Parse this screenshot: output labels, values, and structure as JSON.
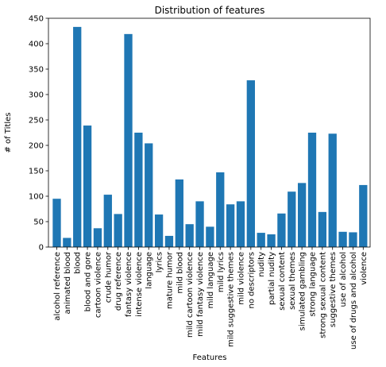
{
  "chart_data": {
    "type": "bar",
    "title": "Distribution of features",
    "xlabel": "Features",
    "ylabel": "# of Titles",
    "ylim": [
      0,
      450
    ],
    "yticks": [
      0,
      50,
      100,
      150,
      200,
      250,
      300,
      350,
      400,
      450
    ],
    "bar_color": "#1f77b4",
    "grid": false,
    "categories": [
      "alcohol reference",
      "animated blood",
      "blood",
      "blood and gore",
      "cartoon violence",
      "crude humor",
      "drug reference",
      "fantasy violence",
      "intense violence",
      "language",
      "lyrics",
      "mature humor",
      "mild blood",
      "mild cartoon violence",
      "mild fantasy violence",
      "mild language",
      "mild lyrics",
      "mild suggestive themes",
      "mild violence",
      "no descriptors",
      "nudity",
      "partial nudity",
      "sexual content",
      "sexual themes",
      "simulated gambling",
      "strong language",
      "strong sexual content",
      "suggestive themes",
      "use of alcohol",
      "use of drugs and alcohol",
      "violence"
    ],
    "values": [
      95,
      18,
      433,
      239,
      37,
      103,
      65,
      419,
      225,
      204,
      64,
      22,
      133,
      45,
      90,
      40,
      147,
      84,
      90,
      328,
      28,
      25,
      66,
      109,
      126,
      225,
      69,
      223,
      30,
      29,
      122
    ]
  }
}
